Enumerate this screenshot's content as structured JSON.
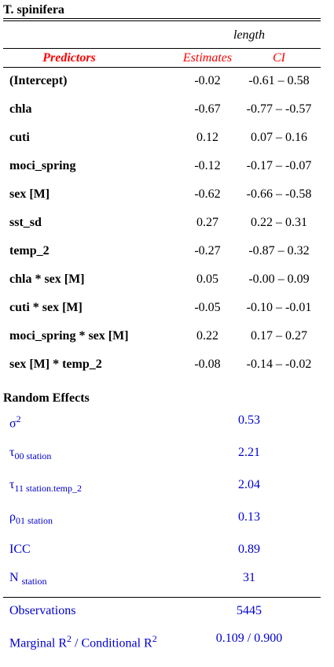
{
  "caption": "T. spinifera",
  "dependent_variable": "length",
  "headers": {
    "predictors": "Predictors",
    "estimates": "Estimates",
    "ci": "CI"
  },
  "rows": [
    {
      "predictor": "(Intercept)",
      "estimate": "-0.02",
      "ci": "-0.61 – 0.58"
    },
    {
      "predictor": "chla",
      "estimate": "-0.67",
      "ci": "-0.77 – -0.57"
    },
    {
      "predictor": "cuti",
      "estimate": "0.12",
      "ci": "0.07 – 0.16"
    },
    {
      "predictor": "moci_spring",
      "estimate": "-0.12",
      "ci": "-0.17 – -0.07"
    },
    {
      "predictor": "sex [M]",
      "estimate": "-0.62",
      "ci": "-0.66 – -0.58"
    },
    {
      "predictor": "sst_sd",
      "estimate": "0.27",
      "ci": "0.22 – 0.31"
    },
    {
      "predictor": "temp_2",
      "estimate": "-0.27",
      "ci": "-0.87 – 0.32"
    },
    {
      "predictor": "chla * sex [M]",
      "estimate": "0.05",
      "ci": "-0.00 – 0.09"
    },
    {
      "predictor": "cuti * sex [M]",
      "estimate": "-0.05",
      "ci": "-0.10 – -0.01"
    },
    {
      "predictor": "moci_spring * sex [M]",
      "estimate": "0.22",
      "ci": "0.17 – 0.27"
    },
    {
      "predictor": "sex [M] * temp_2",
      "estimate": "-0.08",
      "ci": "-0.14 – -0.02"
    }
  ],
  "random_effects": {
    "title": "Random Effects",
    "sigma2": {
      "symbol": "σ",
      "sup": "2",
      "value": "0.53"
    },
    "tau00": {
      "symbol": "τ",
      "sub": "00 station",
      "value": "2.21"
    },
    "tau11": {
      "symbol": "τ",
      "sub": "11 station.temp_2",
      "value": "2.04"
    },
    "rho01": {
      "symbol": "ρ",
      "sub": "01 station",
      "value": "0.13"
    },
    "icc": {
      "label": "ICC",
      "value": "0.89"
    },
    "n": {
      "symbol": "N",
      "sub": "station",
      "value": "31"
    }
  },
  "model_fit": {
    "observations": {
      "label": "Observations",
      "value": "5445"
    },
    "r2": {
      "label_a": "Marginal R",
      "sup_a": "2",
      "label_b": " / Conditional R",
      "sup_b": "2",
      "value": "0.109 / 0.900"
    }
  }
}
